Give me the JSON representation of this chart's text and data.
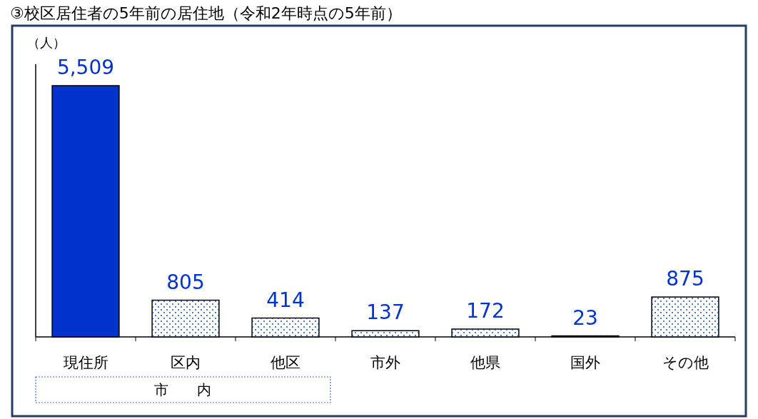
{
  "chart_data": {
    "type": "bar",
    "title": "③校区居住者の5年前の居住地（令和2年時点の5年前）",
    "ylabel": "（人）",
    "categories": [
      "現住所",
      "区内",
      "他区",
      "市外",
      "他県",
      "国外",
      "その他"
    ],
    "values": [
      5509,
      805,
      414,
      137,
      172,
      23,
      875
    ],
    "colors": [
      "#0033cc",
      "#ffffff",
      "#ffffff",
      "#ffffff",
      "#ffffff",
      "#ffffff",
      "#ffffff"
    ],
    "value_labels": [
      "5,509",
      "805",
      "414",
      "137",
      "172",
      "23",
      "875"
    ],
    "annotations": [
      "市　　内"
    ]
  }
}
